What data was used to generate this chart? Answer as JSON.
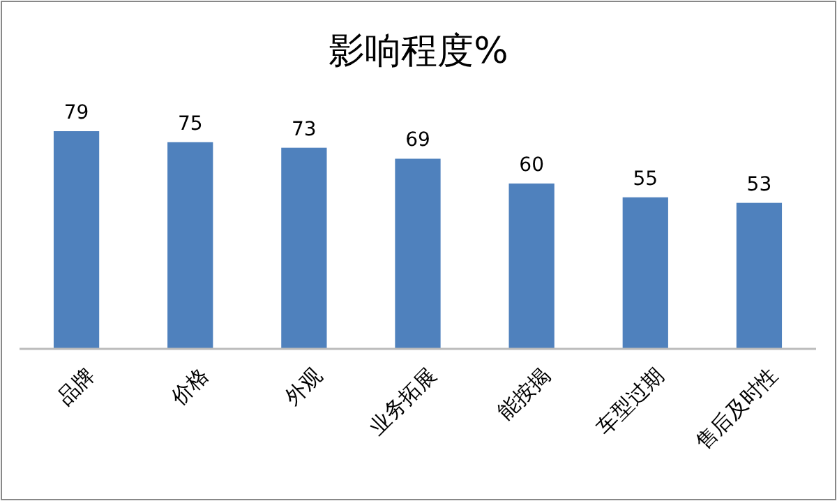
{
  "chart_data": {
    "type": "bar",
    "title": "影响程度%",
    "categories": [
      "品牌",
      "价格",
      "外观",
      "业务拓展",
      "能按揭",
      "车型过期",
      "售后及时性"
    ],
    "values": [
      79,
      75,
      73,
      69,
      60,
      55,
      53
    ],
    "color": "#4f81bd",
    "data_labels": true
  }
}
